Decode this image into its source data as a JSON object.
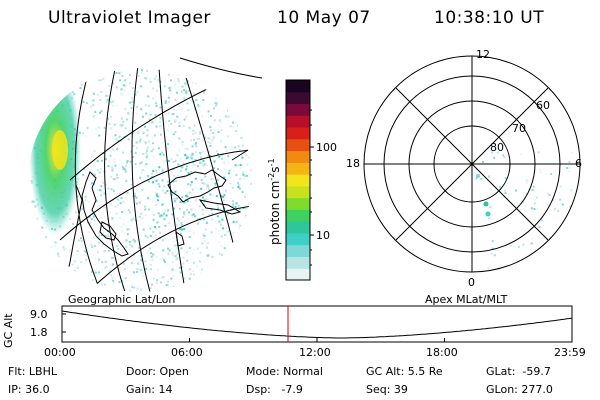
{
  "header": {
    "title": "Ultraviolet Imager",
    "date": "10 May 07",
    "time": "10:38:10 UT"
  },
  "colorbar": {
    "label": "photon cm",
    "sup1": "-2",
    "s": "s",
    "sup2": "-1",
    "ticks": [
      "100",
      "10"
    ],
    "colors": [
      "#e8f4f4",
      "#b8e4e4",
      "#7fd7d7",
      "#40cfc6",
      "#2ec79a",
      "#3fd060",
      "#7fdc2a",
      "#c8e21e",
      "#f2e51a",
      "#f5b414",
      "#f08a10",
      "#e65010",
      "#d8201a",
      "#b8102a",
      "#7a0a3a",
      "#3a0a30",
      "#1a0520"
    ]
  },
  "left_panel": {
    "caption": "Geographic Lat/Lon"
  },
  "right_panel": {
    "caption": "Apex MLat/MLT",
    "mlt_labels": {
      "top": "12",
      "bottom": "0",
      "left": "18",
      "right": "6"
    },
    "lat_labels": [
      "60",
      "70",
      "80"
    ]
  },
  "altitude_plot": {
    "ylabel": "GC Alt",
    "yticks": [
      "9.0",
      "1.8"
    ],
    "xticks": [
      "00:00",
      "06:00",
      "12:00",
      "18:00",
      "23:59"
    ],
    "marker_color": "#e00000"
  },
  "footer": {
    "flt": "Flt: LBHL",
    "ip": "IP: 36.0",
    "door": "Door: Open",
    "gain": "Gain: 14",
    "mode": "Mode: Normal",
    "dsp": "Dsp:   -7.9",
    "gcalt": "GC Alt: 5.5 Re",
    "seq": "Seq: 39",
    "glat": "GLat:  -59.7",
    "glon": "GLon: 277.0"
  }
}
